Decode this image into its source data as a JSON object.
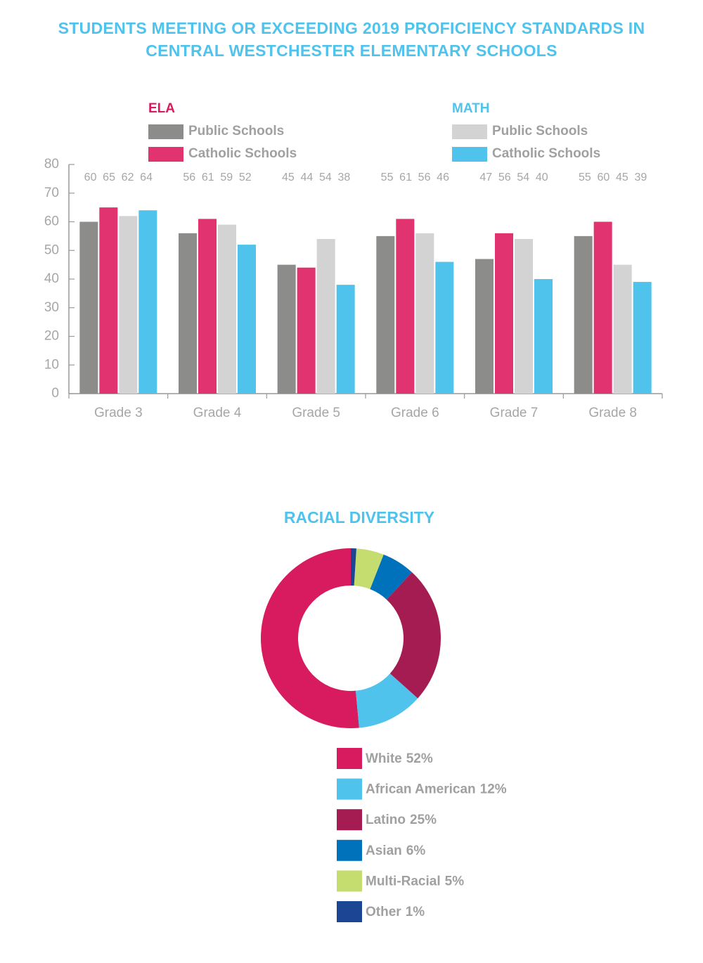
{
  "chart_data": [
    {
      "type": "bar",
      "title": "STUDENTS MEETING OR EXCEEDING 2019 PROFICIENCY STANDARDS IN CENTRAL WESTCHESTER ELEMENTARY SCHOOLS",
      "categories": [
        "Grade 3",
        "Grade 4",
        "Grade 5",
        "Grade 6",
        "Grade 7",
        "Grade 8"
      ],
      "series": [
        {
          "name": "Public Schools",
          "group": "ELA",
          "group_color": "#d81b5f",
          "color": "#8c8c8a",
          "values": [
            60,
            56,
            45,
            55,
            47,
            55
          ]
        },
        {
          "name": "Catholic Schools",
          "group": "ELA",
          "group_color": "#d81b5f",
          "color": "#e0336f",
          "values": [
            65,
            61,
            44,
            61,
            56,
            60
          ]
        },
        {
          "name": "Public Schools",
          "group": "MATH",
          "group_color": "#4fc3ec",
          "color": "#d3d3d3",
          "values": [
            62,
            59,
            54,
            56,
            54,
            45
          ]
        },
        {
          "name": "Catholic Schools",
          "group": "MATH",
          "group_color": "#4fc3ec",
          "color": "#4fc3ec",
          "values": [
            64,
            52,
            38,
            46,
            40,
            39
          ]
        }
      ],
      "ylim": [
        0,
        80
      ],
      "yticks": [
        0,
        10,
        20,
        30,
        40,
        50,
        60,
        70,
        80
      ],
      "grid": false
    },
    {
      "type": "donut",
      "title": "RACIAL DIVERSITY",
      "categories": [
        "White",
        "African American",
        "Latino",
        "Asian",
        "Multi-Racial",
        "Other"
      ],
      "values": [
        52,
        12,
        25,
        6,
        5,
        1
      ],
      "value_labels": [
        "52%",
        "12%",
        "25%",
        "6%",
        "5%",
        "1%"
      ],
      "colors": [
        "#d81b5f",
        "#4fc3ec",
        "#a51c52",
        "#0072bc",
        "#c5dc6e",
        "#1c4593"
      ]
    }
  ]
}
